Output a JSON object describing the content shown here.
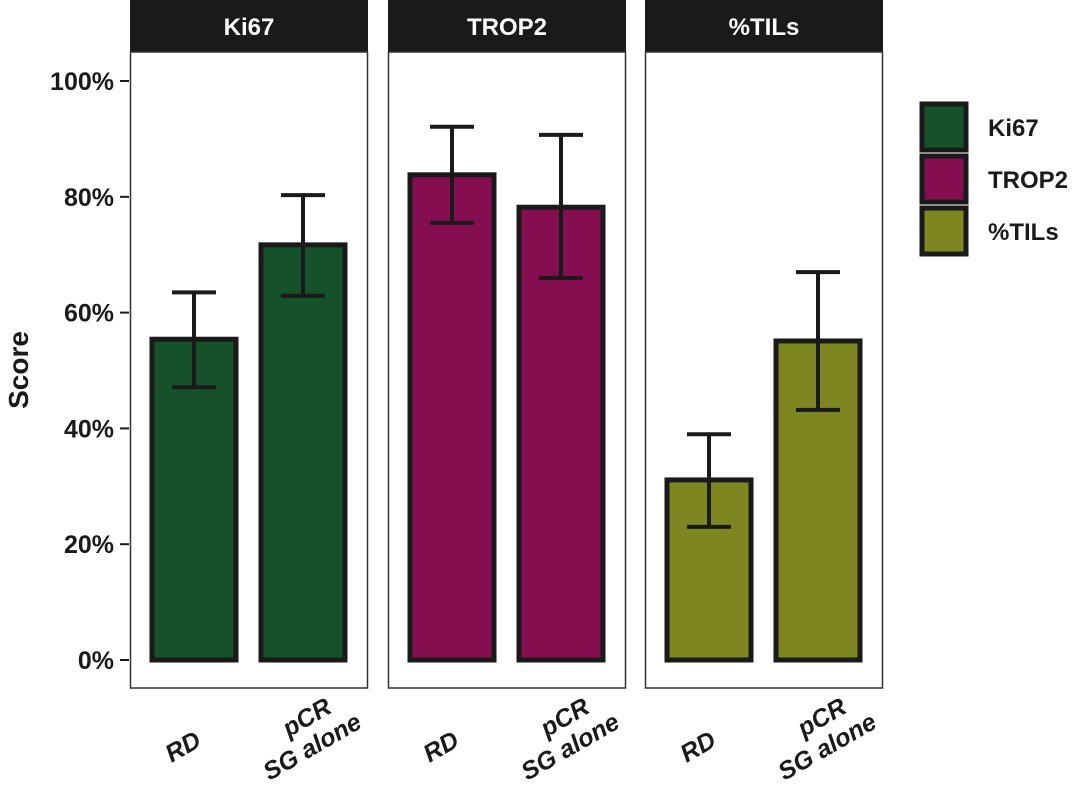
{
  "chart_data": {
    "type": "bar",
    "title": "",
    "xlabel": "",
    "ylabel": "Score",
    "ylim": [
      0,
      100
    ],
    "y_ticks": [
      "0%",
      "20%",
      "40%",
      "60%",
      "80%",
      "100%"
    ],
    "y_tick_values": [
      0,
      20,
      40,
      60,
      80,
      100
    ],
    "grid": false,
    "legend_position": "right",
    "categories": [
      {
        "line1": "RD",
        "line2": ""
      },
      {
        "line1": "pCR",
        "line2": "SG alone"
      }
    ],
    "panels": [
      {
        "name": "Ki67",
        "color": "#15522a",
        "values": [
          55.4,
          71.7
        ],
        "error_low": [
          47.1,
          62.9
        ],
        "error_high": [
          63.5,
          80.3
        ]
      },
      {
        "name": "TROP2",
        "color": "#850e50",
        "values": [
          83.8,
          78.2
        ],
        "error_low": [
          75.5,
          66.0
        ],
        "error_high": [
          92.1,
          90.7
        ]
      },
      {
        "name": "%TILs",
        "color": "#7d8621",
        "values": [
          31.1,
          55.1
        ],
        "error_low": [
          23.0,
          43.2
        ],
        "error_high": [
          39.0,
          67.0
        ]
      }
    ],
    "legend": [
      {
        "label": "Ki67",
        "color": "#15522a"
      },
      {
        "label": "TROP2",
        "color": "#850e50"
      },
      {
        "label": "%TILs",
        "color": "#7d8621"
      }
    ]
  }
}
